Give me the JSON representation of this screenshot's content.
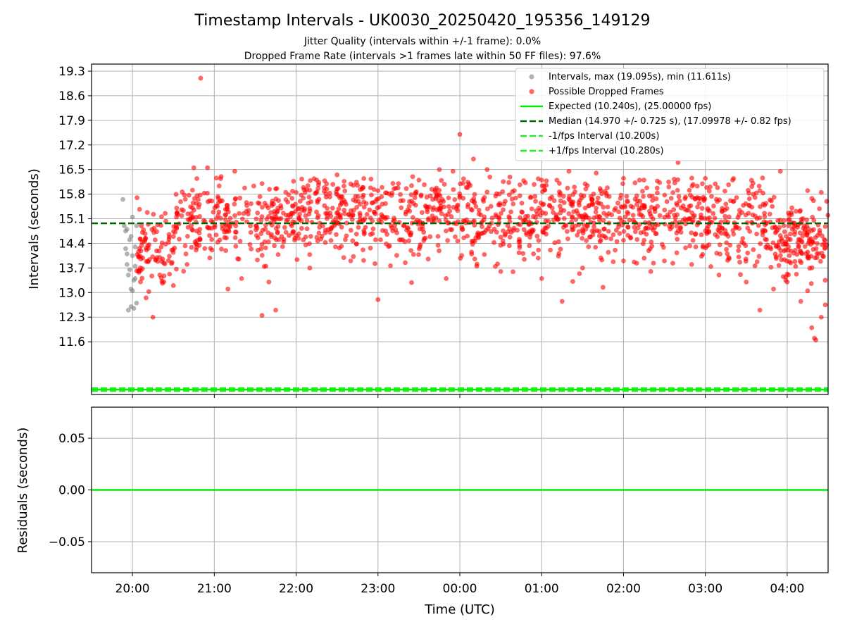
{
  "title": "Timestamp Intervals - UK0030_20250420_195356_149129",
  "subtitle_1": "Jitter Quality (intervals within +/-1 frame): 0.0%",
  "subtitle_2": "Dropped Frame Rate (intervals >1 frames late within 50 FF files): 97.6%",
  "colors": {
    "intervals": "#808080",
    "dropped": "#ff0000",
    "expected": "#00ee00",
    "median": "#006400",
    "fps_interval": "#22ee22",
    "grid": "#b0b0b0"
  },
  "chart_data": [
    {
      "type": "scatter",
      "panel": "top",
      "ylabel": "Intervals (seconds)",
      "ylim": [
        10.1,
        19.5
      ],
      "xlim": [
        "19:30",
        "04:30"
      ],
      "grid": true,
      "legend_placement": "top-right",
      "y_ticks": [
        "11.6",
        "12.3",
        "13.0",
        "13.7",
        "14.4",
        "15.1",
        "15.8",
        "16.5",
        "17.2",
        "17.9",
        "18.6",
        "19.3"
      ],
      "legend": [
        {
          "label": "Intervals, max (19.095s), min (11.611s)",
          "marker": "dot",
          "color": "#808080"
        },
        {
          "label": "Possible Dropped Frames",
          "marker": "dot",
          "color": "#ff0000"
        },
        {
          "label": "Expected (10.240s), (25.00000 fps)",
          "marker": "line",
          "color": "#00ee00"
        },
        {
          "label": "Median (14.970 +/- 0.725 s), (17.09978 +/- 0.82 fps)",
          "marker": "dash",
          "color": "#006400"
        },
        {
          "label": "-1/fps Interval (10.200s)",
          "marker": "dash",
          "color": "#22ee22"
        },
        {
          "label": "+1/fps Interval (10.280s)",
          "marker": "dash",
          "color": "#22ee22"
        }
      ],
      "lines": [
        {
          "name": "Expected",
          "y": 10.24
        },
        {
          "name": "Median",
          "y": 14.97
        },
        {
          "name": "-1/fps Interval",
          "y": 10.2
        },
        {
          "name": "+1/fps Interval",
          "y": 10.28
        }
      ],
      "series": [
        {
          "name": "Intervals",
          "points": [
            [
              "19:53",
              15.65
            ],
            [
              "19:54",
              14.9
            ],
            [
              "19:55",
              14.75
            ],
            [
              "19:55",
              14.25
            ],
            [
              "19:56",
              14.1
            ],
            [
              "19:56",
              13.8
            ],
            [
              "19:57",
              13.5
            ],
            [
              "19:58",
              13.65
            ],
            [
              "19:58",
              14.5
            ],
            [
              "19:59",
              13.1
            ],
            [
              "20:00",
              13.05
            ],
            [
              "20:00",
              14.05
            ],
            [
              "19:57",
              12.5
            ],
            [
              "19:59",
              12.6
            ],
            [
              "20:01",
              12.55
            ],
            [
              "20:00",
              15.15
            ],
            [
              "20:02",
              14.3
            ],
            [
              "20:02",
              13.75
            ],
            [
              "20:03",
              14.9
            ],
            [
              "19:56",
              14.8
            ],
            [
              "20:03",
              12.7
            ],
            [
              "20:01",
              13.35
            ],
            [
              "19:59",
              14.6
            ],
            [
              "20:02",
              13.4
            ]
          ]
        },
        {
          "name": "Possible Dropped Frames",
          "points": [
            [
              "20:50",
              19.1
            ],
            [
              "00:00",
              17.5
            ],
            [
              "20:45",
              16.55
            ],
            [
              "20:55",
              16.55
            ],
            [
              "21:15",
              16.45
            ],
            [
              "21:05",
              16.3
            ],
            [
              "21:35",
              16.1
            ],
            [
              "21:45",
              15.95
            ],
            [
              "22:00",
              15.85
            ],
            [
              "22:15",
              16.2
            ],
            [
              "22:30",
              16.35
            ],
            [
              "22:45",
              16.05
            ],
            [
              "23:00",
              15.9
            ],
            [
              "23:15",
              16.1
            ],
            [
              "23:30",
              16.2
            ],
            [
              "23:45",
              16.5
            ],
            [
              "23:55",
              16.45
            ],
            [
              "00:10",
              16.8
            ],
            [
              "00:20",
              16.5
            ],
            [
              "00:40",
              15.9
            ],
            [
              "01:00",
              16.2
            ],
            [
              "01:20",
              16.45
            ],
            [
              "01:40",
              16.4
            ],
            [
              "02:00",
              16.25
            ],
            [
              "02:15",
              16.2
            ],
            [
              "02:40",
              16.7
            ],
            [
              "03:00",
              16.25
            ],
            [
              "03:20",
              16.2
            ],
            [
              "03:40",
              15.9
            ],
            [
              "03:55",
              16.45
            ],
            [
              "04:15",
              15.9
            ],
            [
              "04:25",
              15.85
            ],
            [
              "20:15",
              12.3
            ],
            [
              "20:30",
              13.2
            ],
            [
              "21:10",
              13.1
            ],
            [
              "21:35",
              12.35
            ],
            [
              "21:45",
              12.5
            ],
            [
              "23:00",
              12.8
            ],
            [
              "01:15",
              12.75
            ],
            [
              "01:45",
              13.15
            ],
            [
              "02:30",
              13.9
            ],
            [
              "03:40",
              12.5
            ],
            [
              "04:00",
              13.3
            ],
            [
              "04:10",
              12.75
            ],
            [
              "04:18",
              12.0
            ],
            [
              "04:20",
              11.7
            ],
            [
              "04:21",
              11.65
            ],
            [
              "04:25",
              12.3
            ],
            [
              "04:28",
              12.65
            ],
            [
              "04:15",
              13.05
            ],
            [
              "20:10",
              12.85
            ],
            [
              "20:20",
              13.5
            ],
            [
              "20:40",
              13.8
            ],
            [
              "21:20",
              13.4
            ],
            [
              "21:40",
              13.3
            ],
            [
              "22:10",
              13.7
            ],
            [
              "22:40",
              13.9
            ],
            [
              "23:20",
              13.85
            ],
            [
              "23:50",
              13.4
            ],
            [
              "00:30",
              13.6
            ],
            [
              "01:00",
              13.4
            ],
            [
              "01:30",
              13.7
            ],
            [
              "02:00",
              13.9
            ],
            [
              "02:20",
              13.6
            ],
            [
              "02:50",
              13.8
            ],
            [
              "03:10",
              13.5
            ],
            [
              "03:30",
              13.3
            ],
            [
              "03:50",
              13.1
            ]
          ]
        }
      ]
    },
    {
      "type": "line",
      "panel": "bottom",
      "xlabel": "Time (UTC)",
      "ylabel": "Residuals (seconds)",
      "ylim": [
        -0.08,
        0.08
      ],
      "grid": true,
      "y_ticks": [
        "0.05",
        "0.00",
        "−0.05"
      ],
      "x_ticks": [
        "20:00",
        "21:00",
        "22:00",
        "23:00",
        "00:00",
        "01:00",
        "02:00",
        "03:00",
        "04:00"
      ],
      "series": [
        {
          "name": "Residuals",
          "y": 0.0
        }
      ]
    }
  ]
}
